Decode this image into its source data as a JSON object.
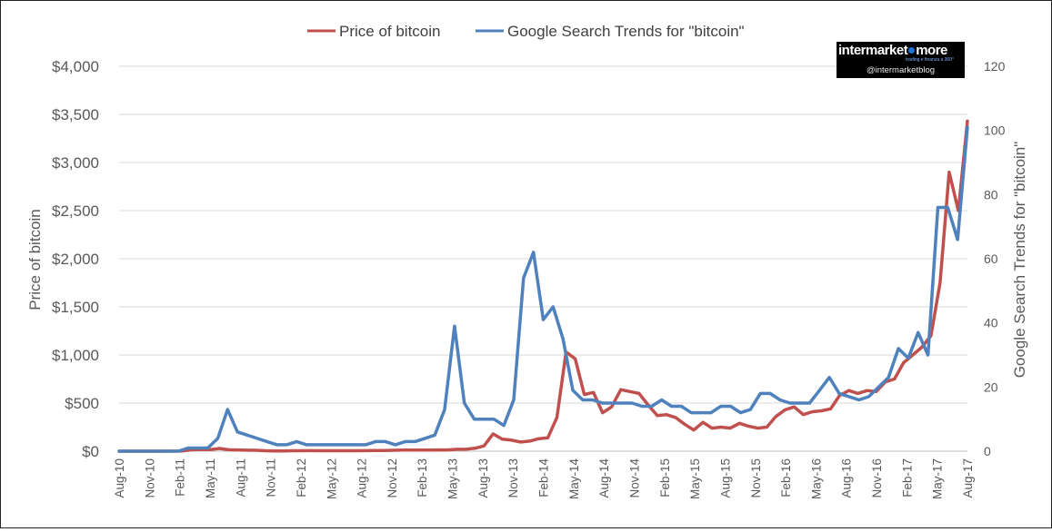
{
  "chart_data": {
    "type": "line",
    "legend": {
      "placement": "top"
    },
    "grid": true,
    "x_tick_labels": [
      "Aug-10",
      "Nov-10",
      "Feb-11",
      "May-11",
      "Aug-11",
      "Nov-11",
      "Feb-12",
      "May-12",
      "Aug-12",
      "Nov-12",
      "Feb-13",
      "May-13",
      "Aug-13",
      "Nov-13",
      "Feb-14",
      "May-14",
      "Aug-14",
      "Nov-14",
      "Feb-15",
      "May-15",
      "Aug-15",
      "Nov-15",
      "Feb-16",
      "May-16",
      "Aug-16",
      "Nov-16",
      "Feb-17",
      "May-17",
      "Aug-17"
    ],
    "left_axis": {
      "label": "Price of bitcoin",
      "ylim": [
        0,
        4000
      ],
      "tick_labels": [
        "$0",
        "$500",
        "$1,000",
        "$1,500",
        "$2,000",
        "$2,500",
        "$3,000",
        "$3,500",
        "$4,000"
      ]
    },
    "right_axis": {
      "label": "Google Search Trends for \"bitcoin\"",
      "ylim": [
        0,
        120
      ],
      "tick_labels": [
        "0",
        "20",
        "40",
        "60",
        "80",
        "100",
        "120"
      ]
    },
    "series": [
      {
        "name": "Price of bitcoin",
        "axis": "left",
        "color": "#c0504d",
        "values": [
          0.07,
          0.06,
          0.1,
          0.2,
          0.2,
          0.3,
          1,
          3,
          15,
          18,
          17,
          28,
          15,
          13,
          10,
          9,
          5,
          3,
          3,
          5,
          5,
          6,
          5,
          4.9,
          5,
          5,
          5,
          5.5,
          7,
          7,
          9,
          11,
          11,
          11,
          12,
          13,
          13,
          20,
          20,
          30,
          55,
          180,
          125,
          115,
          95,
          105,
          130,
          140,
          350,
          1030,
          960,
          590,
          610,
          400,
          460,
          640,
          620,
          600,
          480,
          370,
          380,
          350,
          280,
          220,
          300,
          240,
          250,
          240,
          290,
          260,
          240,
          250,
          360,
          430,
          460,
          380,
          410,
          420,
          440,
          580,
          630,
          600,
          630,
          620,
          720,
          750,
          920,
          1000,
          1080,
          1200,
          1750,
          2900,
          2500,
          3430
        ]
      },
      {
        "name": "Google Search Trends for \"bitcoin\"",
        "axis": "right",
        "color": "#4f81bd",
        "values": [
          0,
          0,
          0,
          0,
          0,
          0,
          0,
          1,
          1,
          1,
          4,
          13,
          6,
          5,
          4,
          3,
          2,
          2,
          3,
          2,
          2,
          2,
          2,
          2,
          2,
          2,
          3,
          3,
          2,
          3,
          3,
          4,
          5,
          13,
          39,
          15,
          10,
          10,
          10,
          8,
          16,
          54,
          62,
          41,
          45,
          35,
          19,
          16,
          16,
          15,
          15,
          15,
          15,
          14,
          14,
          16,
          14,
          14,
          12,
          12,
          12,
          14,
          14,
          12,
          13,
          18,
          18,
          16,
          15,
          15,
          15,
          19,
          23,
          18,
          17,
          16,
          17,
          20,
          23,
          32,
          29,
          37,
          30,
          76,
          76,
          66,
          101
        ]
      }
    ]
  },
  "watermark": {
    "line1_a": "intermarket",
    "line1_b": "more",
    "tagline": "trading e finanza a 360°",
    "line2": "@intermarketblog"
  }
}
